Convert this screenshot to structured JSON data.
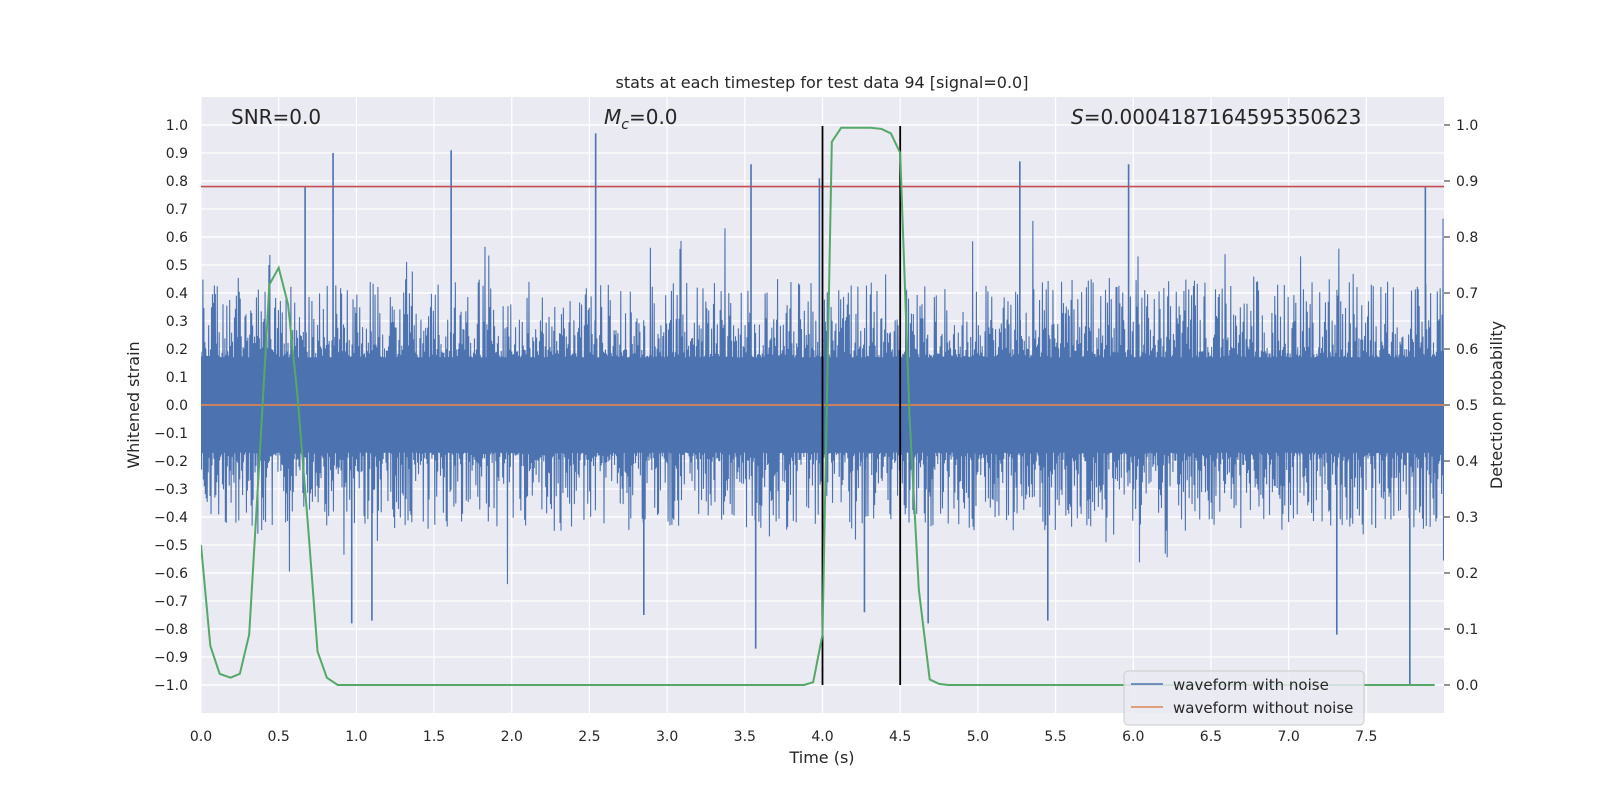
{
  "chart_data": {
    "type": "line",
    "title": "stats at each timestep for test data 94 [signal=0.0]",
    "xlabel": "Time (s)",
    "ylabel_left": "Whitened strain",
    "ylabel_right": "Detection probability",
    "xlim": [
      0.0,
      8.0
    ],
    "ylim_left": [
      -1.1,
      1.1
    ],
    "ylim_right": [
      -0.05,
      1.05
    ],
    "x_ticks": [
      "0.0",
      "0.5",
      "1.0",
      "1.5",
      "2.0",
      "2.5",
      "3.0",
      "3.5",
      "4.0",
      "4.5",
      "5.0",
      "5.5",
      "6.0",
      "6.5",
      "7.0",
      "7.5"
    ],
    "y_left_ticks": [
      "1.0",
      "0.9",
      "0.8",
      "0.7",
      "0.6",
      "0.5",
      "0.4",
      "0.3",
      "0.2",
      "0.1",
      "0.0",
      "−0.1",
      "−0.2",
      "−0.3",
      "−0.4",
      "−0.5",
      "−0.6",
      "−0.7",
      "−0.8",
      "−0.9",
      "−1.0"
    ],
    "y_right_ticks": [
      "1.0",
      "0.9",
      "0.8",
      "0.7",
      "0.6",
      "0.5",
      "0.4",
      "0.3",
      "0.2",
      "0.1",
      "0.0"
    ],
    "annotations": {
      "snr": "SNR=0.0",
      "mc_symbol": "M",
      "mc_sub": "c",
      "mc_value": "=0.0",
      "s_symbol": "S",
      "s_value": "=0.0004187164595350623"
    },
    "threshold_strain": 0.78,
    "vertical_lines": [
      4.0,
      4.5
    ],
    "series": [
      {
        "name": "waveform with noise",
        "color": "#4c72b0",
        "kind": "noise",
        "envelope": {
          "typical_max": 0.45,
          "typical_min": -0.45,
          "max": 0.97,
          "min": -1.0
        },
        "spikes": [
          {
            "t": 0.85,
            "v": 0.9
          },
          {
            "t": 1.61,
            "v": 0.91
          },
          {
            "t": 2.54,
            "v": 0.97
          },
          {
            "t": 3.54,
            "v": 0.86
          },
          {
            "t": 3.98,
            "v": 0.81
          },
          {
            "t": 5.27,
            "v": 0.87
          },
          {
            "t": 5.97,
            "v": 0.86
          },
          {
            "t": 0.67,
            "v": 0.78
          },
          {
            "t": 7.88,
            "v": 0.78
          },
          {
            "t": 3.57,
            "v": -0.87
          },
          {
            "t": 7.78,
            "v": -1.0
          },
          {
            "t": 7.31,
            "v": -0.82
          },
          {
            "t": 4.68,
            "v": -0.78
          },
          {
            "t": 0.97,
            "v": -0.78
          },
          {
            "t": 5.45,
            "v": -0.77
          },
          {
            "t": 4.27,
            "v": -0.74
          },
          {
            "t": 1.1,
            "v": -0.77
          },
          {
            "t": 2.85,
            "v": -0.75
          }
        ]
      },
      {
        "name": "waveform without noise",
        "color": "#dd8452",
        "x": [
          0.0,
          8.0
        ],
        "y": [
          0.0,
          0.0
        ]
      },
      {
        "name": "detection probability",
        "color": "#55a868",
        "axis": "right",
        "x": [
          0.0,
          0.06,
          0.12,
          0.19,
          0.25,
          0.31,
          0.38,
          0.44,
          0.5,
          0.56,
          0.62,
          0.69,
          0.75,
          0.81,
          0.88,
          1.0,
          2.0,
          3.0,
          3.88,
          3.94,
          4.0,
          4.06,
          4.12,
          4.19,
          4.25,
          4.31,
          4.38,
          4.44,
          4.5,
          4.56,
          4.62,
          4.69,
          4.75,
          4.81,
          5.0,
          6.0,
          7.0,
          7.94
        ],
        "y": [
          0.25,
          0.07,
          0.02,
          0.013,
          0.02,
          0.09,
          0.42,
          0.715,
          0.745,
          0.68,
          0.52,
          0.28,
          0.06,
          0.013,
          0.0,
          0.0,
          0.0,
          0.0,
          0.0,
          0.005,
          0.09,
          0.97,
          0.995,
          0.995,
          0.995,
          0.995,
          0.993,
          0.985,
          0.95,
          0.48,
          0.17,
          0.01,
          0.002,
          0.0,
          0.0,
          0.0,
          0.0,
          0.0
        ]
      }
    ],
    "legend": {
      "placement": "lower-right",
      "entries": [
        {
          "label": "waveform with noise",
          "color": "#4c72b0"
        },
        {
          "label": "waveform without noise",
          "color": "#dd8452"
        }
      ]
    }
  }
}
